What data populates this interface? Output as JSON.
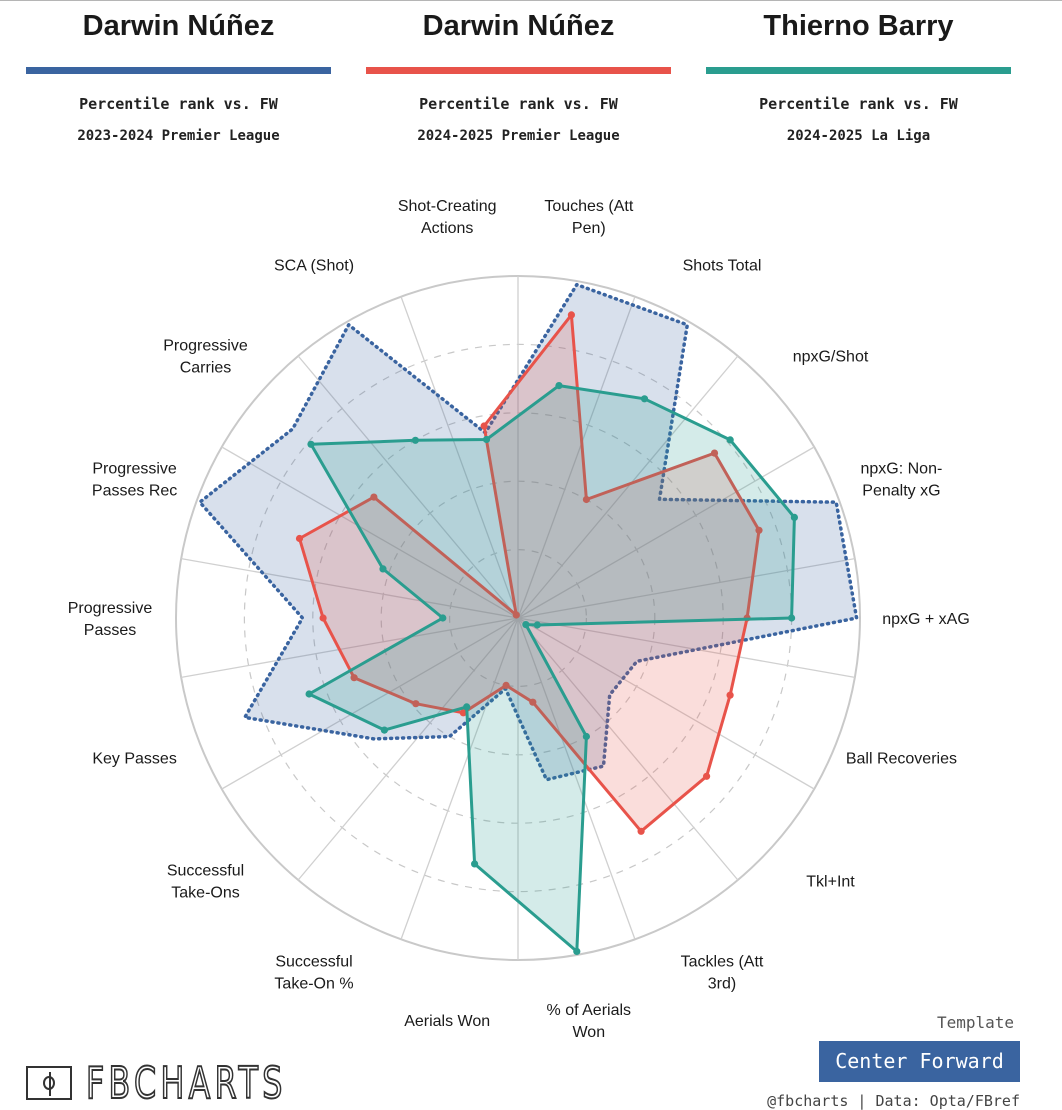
{
  "header": {
    "players": [
      {
        "name": "Darwin Núñez",
        "rank_label": "Percentile rank vs. FW",
        "season": "2023-2024 Premier League",
        "color": "#3a64a0"
      },
      {
        "name": "Darwin Núñez",
        "rank_label": "Percentile rank vs. FW",
        "season": "2024-2025 Premier League",
        "color": "#e8534a"
      },
      {
        "name": "Thierno Barry",
        "rank_label": "Percentile rank vs. FW",
        "season": "2024-2025 La Liga",
        "color": "#2a9d8f"
      }
    ]
  },
  "footer": {
    "template_label": "Template",
    "template_name": "Center Forward",
    "credit": "@fbcharts | Data: Opta/FBref",
    "logo_text": "FBCHARTS",
    "logo_icon": "pitch-icon"
  },
  "chart_data": {
    "type": "radar",
    "scale": [
      0,
      100
    ],
    "metrics": [
      "Shot-Creating\nActions",
      "SCA (Shot)",
      "Progressive\nCarries",
      "Progressive\nPasses Rec",
      "Progressive\nPasses",
      "Key Passes",
      "Successful\nTake-Ons",
      "Successful\nTake-On %",
      "Aerials Won",
      "% of Aerials\nWon",
      "Tackles (Att\n3rd)",
      "Tkl+Int",
      "Ball Recoveries",
      "npxG + xAG",
      "npxG: Non-\nPenalty xG",
      "npxG/Shot",
      "Shots Total",
      "Touches (Att\nPen)"
    ],
    "series": [
      {
        "name": "Darwin Núñez 2023-2024 Premier League",
        "color": "#3a64a0",
        "style": "dotted",
        "values": [
          55,
          99,
          86,
          99,
          63,
          85,
          55,
          40,
          21,
          48,
          50,
          35,
          37,
          99,
          99,
          54,
          99,
          99
        ]
      },
      {
        "name": "Darwin Núñez 2024-2025 Premier League",
        "color": "#e8534a",
        "style": "solid",
        "values": [
          57,
          1,
          55,
          68,
          57,
          51,
          39,
          32,
          20,
          25,
          72,
          72,
          66,
          67,
          75,
          75,
          40,
          90
        ]
      },
      {
        "name": "Thierno Barry 2024-2025 La Liga",
        "color": "#2a9d8f",
        "style": "solid",
        "values": [
          53,
          60,
          79,
          42,
          22,
          65,
          51,
          30,
          73,
          99,
          40,
          3,
          6,
          80,
          86,
          81,
          74,
          69
        ]
      }
    ]
  }
}
